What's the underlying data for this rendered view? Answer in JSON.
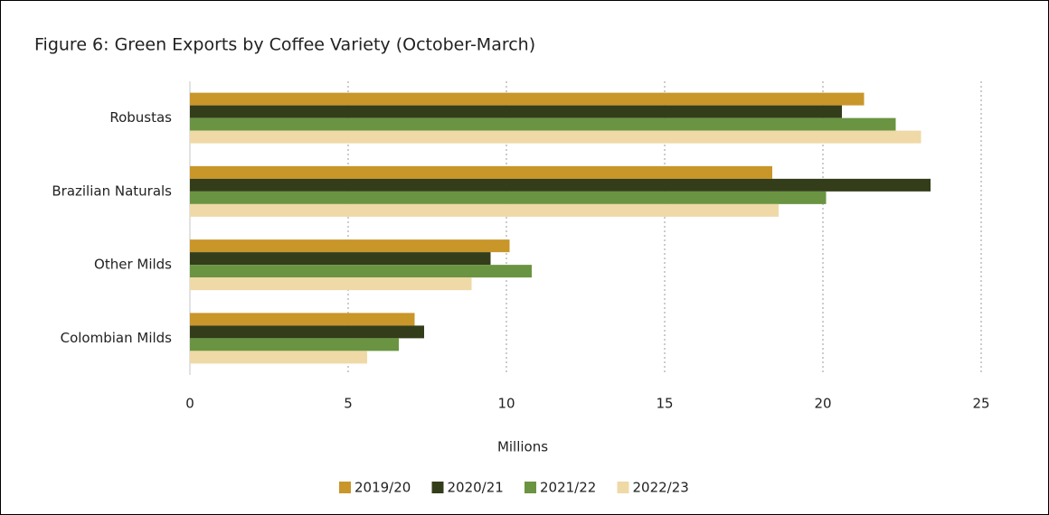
{
  "chart_data": {
    "type": "bar",
    "orientation": "horizontal",
    "title": "Figure 6: Green Exports by Coffee Variety (October-March)",
    "xlabel": "Millions",
    "categories": [
      "Robustas",
      "Brazilian Naturals",
      "Other Milds",
      "Colombian Milds"
    ],
    "series": [
      {
        "name": "2019/20",
        "color": "#c9962a",
        "values": [
          21.3,
          18.4,
          10.1,
          7.1
        ]
      },
      {
        "name": "2020/21",
        "color": "#333d1a",
        "values": [
          20.6,
          23.4,
          9.5,
          7.4
        ]
      },
      {
        "name": "2021/22",
        "color": "#6a9441",
        "values": [
          22.3,
          20.1,
          10.8,
          6.6
        ]
      },
      {
        "name": "2022/23",
        "color": "#efd9a7",
        "values": [
          23.1,
          18.6,
          8.9,
          5.6
        ]
      }
    ],
    "xlim": [
      0,
      25
    ],
    "xticks": [
      0,
      5,
      10,
      15,
      20,
      25
    ],
    "grid": true,
    "legend": "bottom"
  }
}
